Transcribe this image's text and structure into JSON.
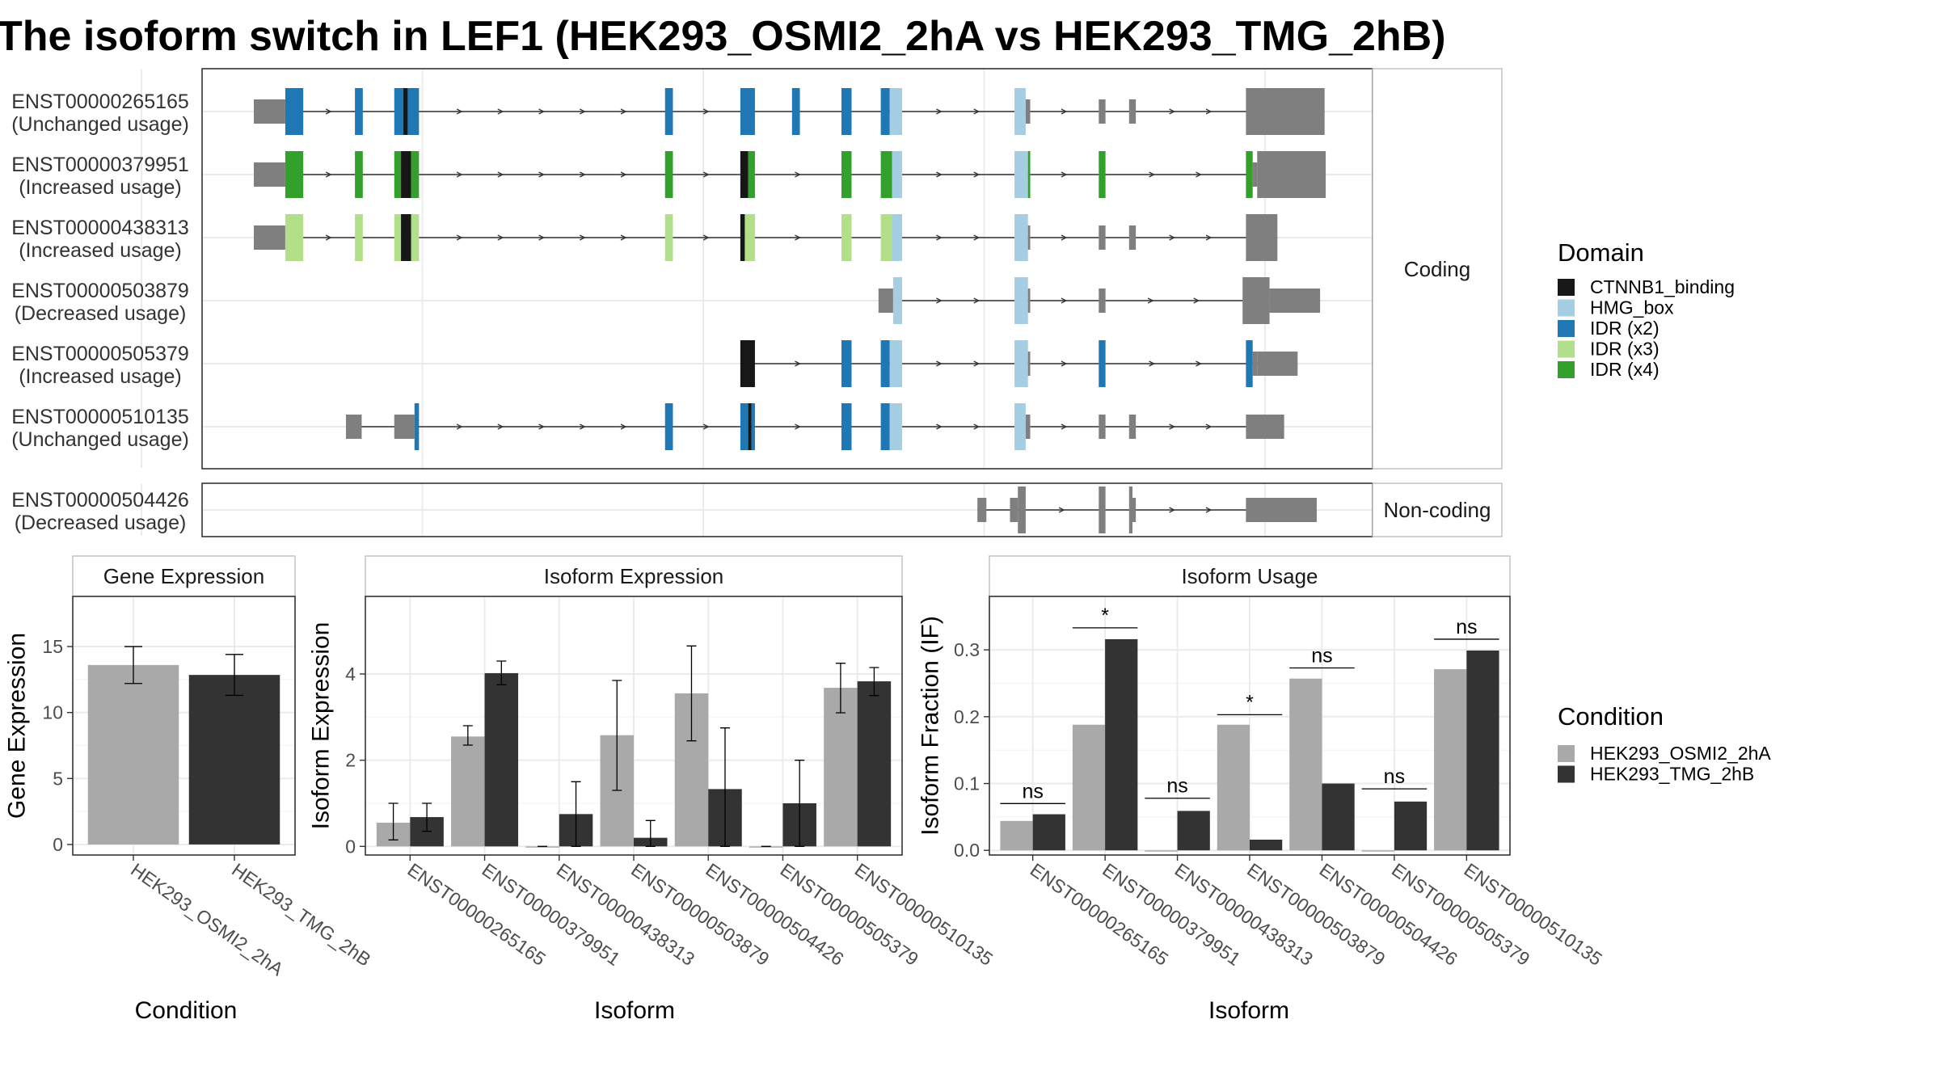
{
  "title": "The isoform switch in LEF1 (HEK293_OSMI2_2hA vs HEK293_TMG_2hB)",
  "colors": {
    "CTNNB1_binding": "#171717",
    "HMG_box": "#a6cee3",
    "IDR (x2)": "#1f78b4",
    "IDR (x3)": "#b2df8a",
    "IDR (x4)": "#33a02c",
    "noncoding_exon": "#7f7f7f",
    "cond_A": "#a9a9a9",
    "cond_B": "#333333"
  },
  "facets": {
    "coding": "Coding",
    "noncoding": "Non-coding"
  },
  "domain_legend": {
    "title": "Domain",
    "items": [
      "CTNNB1_binding",
      "HMG_box",
      "IDR (x2)",
      "IDR (x3)",
      "IDR (x4)"
    ]
  },
  "condition_legend": {
    "title": "Condition",
    "items": [
      "HEK293_OSMI2_2hA",
      "HEK293_TMG_2hB"
    ]
  },
  "chart_data": [
    {
      "type": "transcript_structure",
      "x_range": [
        0,
        1000
      ],
      "isoforms": [
        {
          "id": "ENST00000265165",
          "label": "ENST00000265165",
          "usage": "(Unchanged usage)",
          "facet": "Coding",
          "exons": [
            {
              "s": 0,
              "e": 28,
              "c": "nc"
            },
            {
              "s": 28,
              "e": 44,
              "c": "IDR (x2)"
            },
            {
              "s": 90,
              "e": 97,
              "c": "IDR (x2)"
            },
            {
              "s": 125,
              "e": 133,
              "c": "IDR (x2)"
            },
            {
              "s": 133,
              "e": 137,
              "c": "CTNNB1_binding"
            },
            {
              "s": 137,
              "e": 147,
              "c": "IDR (x2)"
            },
            {
              "s": 366,
              "e": 373,
              "c": "IDR (x2)"
            },
            {
              "s": 433,
              "e": 446,
              "c": "IDR (x2)"
            },
            {
              "s": 479,
              "e": 486,
              "c": "IDR (x2)"
            },
            {
              "s": 523,
              "e": 532,
              "c": "IDR (x2)"
            },
            {
              "s": 558,
              "e": 566,
              "c": "IDR (x2)"
            },
            {
              "s": 566,
              "e": 577,
              "c": "HMG_box"
            },
            {
              "s": 677,
              "e": 687,
              "c": "HMG_box"
            },
            {
              "s": 687,
              "e": 691,
              "c": "nc"
            },
            {
              "s": 752,
              "e": 758,
              "c": "nc"
            },
            {
              "s": 779,
              "e": 782,
              "c": "nc"
            },
            {
              "s": 782,
              "e": 785,
              "c": "nc",
              "h": "small"
            },
            {
              "s": 883,
              "e": 953,
              "c": "nc",
              "h": "big"
            }
          ]
        },
        {
          "id": "ENST00000379951",
          "label": "ENST00000379951",
          "usage": "(Increased usage)",
          "facet": "Coding",
          "exons": [
            {
              "s": 0,
              "e": 28,
              "c": "nc"
            },
            {
              "s": 28,
              "e": 44,
              "c": "IDR (x4)"
            },
            {
              "s": 90,
              "e": 97,
              "c": "IDR (x4)"
            },
            {
              "s": 125,
              "e": 131,
              "c": "IDR (x4)"
            },
            {
              "s": 131,
              "e": 140,
              "c": "CTNNB1_binding"
            },
            {
              "s": 140,
              "e": 147,
              "c": "IDR (x4)"
            },
            {
              "s": 366,
              "e": 373,
              "c": "IDR (x4)"
            },
            {
              "s": 433,
              "e": 440,
              "c": "CTNNB1_binding"
            },
            {
              "s": 440,
              "e": 446,
              "c": "IDR (x4)"
            },
            {
              "s": 523,
              "e": 532,
              "c": "IDR (x4)"
            },
            {
              "s": 558,
              "e": 568,
              "c": "IDR (x4)"
            },
            {
              "s": 568,
              "e": 577,
              "c": "HMG_box"
            },
            {
              "s": 677,
              "e": 689,
              "c": "HMG_box"
            },
            {
              "s": 689,
              "e": 691,
              "c": "IDR (x4)"
            },
            {
              "s": 752,
              "e": 758,
              "c": "IDR (x4)"
            },
            {
              "s": 883,
              "e": 889,
              "c": "IDR (x4)"
            },
            {
              "s": 889,
              "e": 893,
              "c": "nc"
            },
            {
              "s": 893,
              "e": 954,
              "c": "nc",
              "h": "big"
            }
          ]
        },
        {
          "id": "ENST00000438313",
          "label": "ENST00000438313",
          "usage": "(Increased usage)",
          "facet": "Coding",
          "exons": [
            {
              "s": 0,
              "e": 28,
              "c": "nc"
            },
            {
              "s": 28,
              "e": 44,
              "c": "IDR (x3)"
            },
            {
              "s": 90,
              "e": 97,
              "c": "IDR (x3)"
            },
            {
              "s": 125,
              "e": 131,
              "c": "IDR (x3)"
            },
            {
              "s": 131,
              "e": 140,
              "c": "CTNNB1_binding"
            },
            {
              "s": 140,
              "e": 147,
              "c": "IDR (x3)"
            },
            {
              "s": 366,
              "e": 373,
              "c": "IDR (x3)"
            },
            {
              "s": 433,
              "e": 437,
              "c": "CTNNB1_binding"
            },
            {
              "s": 437,
              "e": 446,
              "c": "IDR (x3)"
            },
            {
              "s": 523,
              "e": 532,
              "c": "IDR (x3)"
            },
            {
              "s": 558,
              "e": 568,
              "c": "IDR (x3)"
            },
            {
              "s": 568,
              "e": 577,
              "c": "HMG_box"
            },
            {
              "s": 677,
              "e": 689,
              "c": "HMG_box"
            },
            {
              "s": 689,
              "e": 691,
              "c": "nc"
            },
            {
              "s": 752,
              "e": 758,
              "c": "nc"
            },
            {
              "s": 779,
              "e": 782,
              "c": "nc"
            },
            {
              "s": 782,
              "e": 785,
              "c": "nc",
              "h": "small"
            },
            {
              "s": 883,
              "e": 911,
              "c": "nc",
              "h": "big"
            }
          ]
        },
        {
          "id": "ENST00000503879",
          "label": "ENST00000503879",
          "usage": "(Decreased usage)",
          "facet": "Coding",
          "exons": [
            {
              "s": 556,
              "e": 569,
              "c": "nc"
            },
            {
              "s": 569,
              "e": 577,
              "c": "HMG_box"
            },
            {
              "s": 677,
              "e": 689,
              "c": "HMG_box"
            },
            {
              "s": 689,
              "e": 691,
              "c": "nc"
            },
            {
              "s": 752,
              "e": 758,
              "c": "nc"
            },
            {
              "s": 880,
              "e": 904,
              "c": "nc",
              "h": "big"
            },
            {
              "s": 904,
              "e": 949,
              "c": "nc"
            }
          ]
        },
        {
          "id": "ENST00000505379",
          "label": "ENST00000505379",
          "usage": "(Increased usage)",
          "facet": "Coding",
          "exons": [
            {
              "s": 433,
              "e": 446,
              "c": "CTNNB1_binding"
            },
            {
              "s": 523,
              "e": 532,
              "c": "IDR (x2)"
            },
            {
              "s": 558,
              "e": 566,
              "c": "IDR (x2)"
            },
            {
              "s": 566,
              "e": 577,
              "c": "HMG_box"
            },
            {
              "s": 677,
              "e": 689,
              "c": "HMG_box"
            },
            {
              "s": 689,
              "e": 691,
              "c": "nc"
            },
            {
              "s": 752,
              "e": 758,
              "c": "IDR (x2)"
            },
            {
              "s": 883,
              "e": 889,
              "c": "IDR (x2)"
            },
            {
              "s": 889,
              "e": 893,
              "c": "nc"
            },
            {
              "s": 893,
              "e": 929,
              "c": "nc"
            }
          ]
        },
        {
          "id": "ENST00000510135",
          "label": "ENST00000510135",
          "usage": "(Unchanged usage)",
          "facet": "Coding",
          "exons": [
            {
              "s": 82,
              "e": 96,
              "c": "nc"
            },
            {
              "s": 125,
              "e": 143,
              "c": "nc"
            },
            {
              "s": 143,
              "e": 147,
              "c": "IDR (x2)"
            },
            {
              "s": 366,
              "e": 373,
              "c": "IDR (x2)"
            },
            {
              "s": 433,
              "e": 440,
              "c": "IDR (x2)"
            },
            {
              "s": 440,
              "e": 443,
              "c": "CTNNB1_binding"
            },
            {
              "s": 443,
              "e": 446,
              "c": "IDR (x2)"
            },
            {
              "s": 523,
              "e": 532,
              "c": "IDR (x2)"
            },
            {
              "s": 558,
              "e": 566,
              "c": "IDR (x2)"
            },
            {
              "s": 566,
              "e": 577,
              "c": "HMG_box"
            },
            {
              "s": 677,
              "e": 687,
              "c": "HMG_box"
            },
            {
              "s": 687,
              "e": 691,
              "c": "nc"
            },
            {
              "s": 752,
              "e": 758,
              "c": "nc"
            },
            {
              "s": 779,
              "e": 782,
              "c": "nc"
            },
            {
              "s": 782,
              "e": 785,
              "c": "nc",
              "h": "small"
            },
            {
              "s": 883,
              "e": 917,
              "c": "nc"
            }
          ]
        },
        {
          "id": "ENST00000504426",
          "label": "ENST00000504426",
          "usage": "(Decreased usage)",
          "facet": "Non-coding",
          "exons": [
            {
              "s": 644,
              "e": 652,
              "c": "nc",
              "h": "small"
            },
            {
              "s": 673,
              "e": 680,
              "c": "nc",
              "h": "small"
            },
            {
              "s": 680,
              "e": 687,
              "c": "nc",
              "h": "big"
            },
            {
              "s": 752,
              "e": 758,
              "c": "nc",
              "h": "big"
            },
            {
              "s": 779,
              "e": 782,
              "c": "nc",
              "h": "big"
            },
            {
              "s": 782,
              "e": 785,
              "c": "nc",
              "h": "small"
            },
            {
              "s": 883,
              "e": 946,
              "c": "nc"
            }
          ]
        }
      ]
    },
    {
      "type": "bar",
      "title": "Gene Expression",
      "xlabel": "Condition",
      "ylabel": "Gene Expression",
      "categories": [
        "HEK293_OSMI2_2hA",
        "HEK293_TMG_2hB"
      ],
      "values": [
        13.6,
        12.85
      ],
      "errors": [
        [
          12.2,
          15.0
        ],
        [
          11.3,
          14.4
        ]
      ],
      "ylim": [
        -0.8,
        18.8
      ],
      "yticks": [
        0,
        5,
        10,
        15
      ]
    },
    {
      "type": "bar",
      "title": "Isoform Expression",
      "xlabel": "Isoform",
      "ylabel": "Isoform Expression",
      "categories": [
        "ENST00000265165",
        "ENST00000379951",
        "ENST00000438313",
        "ENST00000503879",
        "ENST00000504426",
        "ENST00000505379",
        "ENST00000510135"
      ],
      "series": [
        {
          "name": "HEK293_OSMI2_2hA",
          "values": [
            0.55,
            2.55,
            0.0,
            2.58,
            3.55,
            0.0,
            3.68
          ],
          "errors": [
            [
              0.15,
              1.0
            ],
            [
              2.35,
              2.8
            ],
            [
              0.0,
              0.0
            ],
            [
              1.3,
              3.85
            ],
            [
              2.45,
              4.65
            ],
            [
              0.0,
              0.0
            ],
            [
              3.1,
              4.25
            ]
          ]
        },
        {
          "name": "HEK293_TMG_2hB",
          "values": [
            0.68,
            4.02,
            0.75,
            0.2,
            1.33,
            1.0,
            3.83
          ],
          "errors": [
            [
              0.35,
              1.0
            ],
            [
              3.75,
              4.3
            ],
            [
              0.0,
              1.5
            ],
            [
              0.0,
              0.6
            ],
            [
              0.0,
              2.75
            ],
            [
              0.0,
              2.0
            ],
            [
              3.5,
              4.15
            ]
          ]
        }
      ],
      "ylim": [
        -0.2,
        5.8
      ],
      "yticks": [
        0,
        2,
        4
      ]
    },
    {
      "type": "bar",
      "title": "Isoform Usage",
      "xlabel": "Isoform",
      "ylabel": "Isoform Fraction (IF)",
      "categories": [
        "ENST00000265165",
        "ENST00000379951",
        "ENST00000438313",
        "ENST00000503879",
        "ENST00000504426",
        "ENST00000505379",
        "ENST00000510135"
      ],
      "series": [
        {
          "name": "HEK293_OSMI2_2hA",
          "values": [
            0.044,
            0.188,
            0.0,
            0.188,
            0.257,
            0.0,
            0.271
          ]
        },
        {
          "name": "HEK293_TMG_2hB",
          "values": [
            0.054,
            0.316,
            0.059,
            0.016,
            0.1,
            0.073,
            0.299
          ]
        }
      ],
      "significance": [
        "ns",
        "*",
        "ns",
        "*",
        "ns",
        "ns",
        "ns"
      ],
      "sig_levels": [
        0.07,
        0.333,
        0.078,
        0.203,
        0.273,
        0.092,
        0.316
      ],
      "ylim": [
        -0.007,
        0.38
      ],
      "yticks": [
        0.0,
        0.1,
        0.2,
        0.3
      ],
      "ytick_labels": [
        "0.0",
        "0.1",
        "0.2",
        "0.3"
      ]
    }
  ]
}
